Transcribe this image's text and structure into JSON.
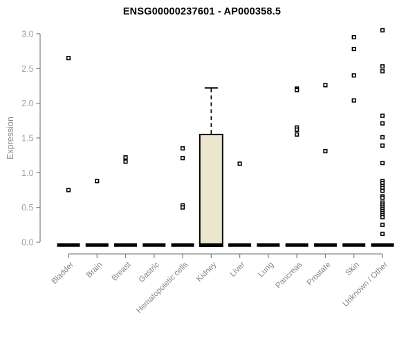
{
  "chart_data": {
    "type": "boxplot",
    "title": "ENSG00000237601 - AP000358.5",
    "ylabel": "Expression",
    "xlabel": "",
    "ylim": [
      0.0,
      3.0
    ],
    "yticks": [
      "0.0",
      "0.5",
      "1.0",
      "1.5",
      "2.0",
      "2.5",
      "3.0"
    ],
    "ytick_values": [
      0.0,
      0.5,
      1.0,
      1.5,
      2.0,
      2.5,
      3.0
    ],
    "grid": false,
    "legend": "none",
    "point_style": "open-square",
    "categories": [
      "Bladder",
      "Brain",
      "Breast",
      "Gastric",
      "Hematopoietic cells",
      "Kidney",
      "Liver",
      "Lung",
      "Pancreas",
      "Prostate",
      "Skin",
      "Unknown / Other"
    ],
    "boxes": [
      {
        "category": "Bladder",
        "median": 0,
        "q1": 0,
        "q3": 0,
        "whisker_low": 0,
        "whisker_high": 0,
        "outliers": [
          2.65,
          0.75
        ]
      },
      {
        "category": "Brain",
        "median": 0,
        "q1": 0,
        "q3": 0,
        "whisker_low": 0,
        "whisker_high": 0,
        "outliers": [
          0.88
        ]
      },
      {
        "category": "Breast",
        "median": 0,
        "q1": 0,
        "q3": 0,
        "whisker_low": 0,
        "whisker_high": 0,
        "outliers": [
          1.22,
          1.16
        ]
      },
      {
        "category": "Gastric",
        "median": 0,
        "q1": 0,
        "q3": 0,
        "whisker_low": 0,
        "whisker_high": 0,
        "outliers": []
      },
      {
        "category": "Hematopoietic cells",
        "median": 0,
        "q1": 0,
        "q3": 0,
        "whisker_low": 0,
        "whisker_high": 0,
        "outliers": [
          1.35,
          1.21,
          0.53,
          0.5
        ]
      },
      {
        "category": "Kidney",
        "median": 0,
        "q1": 0,
        "q3": 1.55,
        "whisker_low": 0,
        "whisker_high": 2.22,
        "outliers": []
      },
      {
        "category": "Liver",
        "median": 0,
        "q1": 0,
        "q3": 0,
        "whisker_low": 0,
        "whisker_high": 0,
        "outliers": [
          1.13
        ]
      },
      {
        "category": "Lung",
        "median": 0,
        "q1": 0,
        "q3": 0,
        "whisker_low": 0,
        "whisker_high": 0,
        "outliers": []
      },
      {
        "category": "Pancreas",
        "median": 0,
        "q1": 0,
        "q3": 0,
        "whisker_low": 0,
        "whisker_high": 0,
        "outliers": [
          2.21,
          2.19,
          1.65,
          1.62,
          1.55
        ]
      },
      {
        "category": "Prostate",
        "median": 0,
        "q1": 0,
        "q3": 0,
        "whisker_low": 0,
        "whisker_high": 0,
        "outliers": [
          2.26,
          1.31
        ]
      },
      {
        "category": "Skin",
        "median": 0,
        "q1": 0,
        "q3": 0,
        "whisker_low": 0,
        "whisker_high": 0,
        "outliers": [
          2.95,
          2.78,
          2.4,
          2.04
        ]
      },
      {
        "category": "Unknown / Other",
        "median": 0,
        "q1": 0,
        "q3": 0,
        "whisker_low": 0,
        "whisker_high": 0,
        "outliers": [
          3.05,
          2.53,
          2.46,
          1.82,
          1.71,
          1.51,
          1.39,
          1.14,
          0.88,
          0.85,
          0.81,
          0.78,
          0.74,
          0.66,
          0.64,
          0.57,
          0.54,
          0.51,
          0.48,
          0.45,
          0.42,
          0.39,
          0.36,
          0.25,
          0.12
        ]
      }
    ],
    "colors": {
      "background": "#ffffff",
      "title_text": "#000000",
      "axis_line": "#888888",
      "ytick_text": "#98a5b3",
      "xtick_text": "#868686",
      "ylabel_text": "#8a8a8a",
      "box_fill": "#ece6ce",
      "box_stroke": "#000000",
      "median_bar": "#000000",
      "point_stroke": "#000000",
      "point_fill": "#ffffff"
    }
  }
}
